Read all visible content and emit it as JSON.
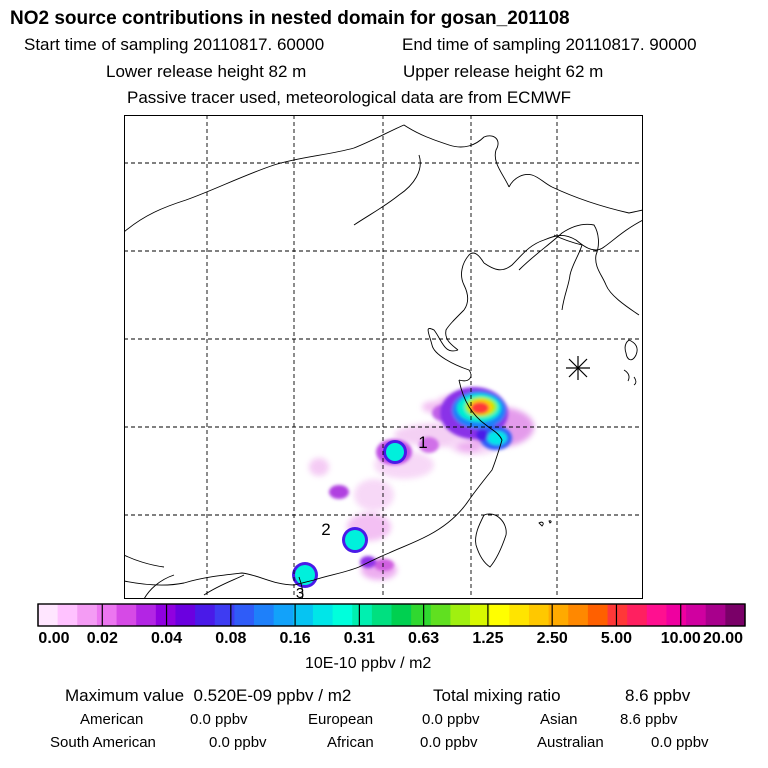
{
  "title": "NO2 source contributions in nested domain for gosan_201108",
  "sampling": {
    "start": "Start time of sampling 20110817. 60000",
    "end": "End time of sampling 20110817. 90000"
  },
  "release": {
    "lower": "Lower release height   82 m",
    "upper": "Upper release height   62 m"
  },
  "note": "Passive tracer used, meteorological data are from ECMWF",
  "map": {
    "markers": [
      "1",
      "2",
      "3"
    ],
    "receptor_symbol": "station-star-icon"
  },
  "colorbar": {
    "labels": [
      "0.00",
      "0.02",
      "0.04",
      "0.08",
      "0.16",
      "0.31",
      "0.63",
      "1.25",
      "2.50",
      "5.00",
      "10.00",
      "20.00"
    ],
    "colors": [
      "#ffe6ff",
      "#ffc2ff",
      "#f49cf4",
      "#ec76f0",
      "#d64ae6",
      "#b325e4",
      "#9000e0",
      "#6b00e0",
      "#4a1ae8",
      "#3e3cf2",
      "#2f5cf8",
      "#1e80fa",
      "#12a2fa",
      "#06c4f2",
      "#00e6e8",
      "#00ffdc",
      "#00f0b0",
      "#00e080",
      "#00d050",
      "#30d830",
      "#60e020",
      "#a0f010",
      "#d8f800",
      "#ffff00",
      "#ffe400",
      "#ffc800",
      "#ffaa00",
      "#ff8800",
      "#ff6000",
      "#ff3838",
      "#ff2060",
      "#ff1090",
      "#ef00a0",
      "#d000a0",
      "#a8008c",
      "#7a0068"
    ],
    "units": "10E-10 ppbv / m2"
  },
  "summary": {
    "max_label": "Maximum value",
    "max_value": "0.520E-09 ppbv / m2",
    "total_label": "Total mixing ratio",
    "total_value": "8.6 ppbv"
  },
  "regions": [
    {
      "name": "American",
      "value": "0.0 ppbv"
    },
    {
      "name": "European",
      "value": "0.0 ppbv"
    },
    {
      "name": "Asian",
      "value": "8.6 ppbv"
    },
    {
      "name": "South American",
      "value": "0.0 ppbv"
    },
    {
      "name": "African",
      "value": "0.0 ppbv"
    },
    {
      "name": "Australian",
      "value": "0.0 ppbv"
    }
  ]
}
